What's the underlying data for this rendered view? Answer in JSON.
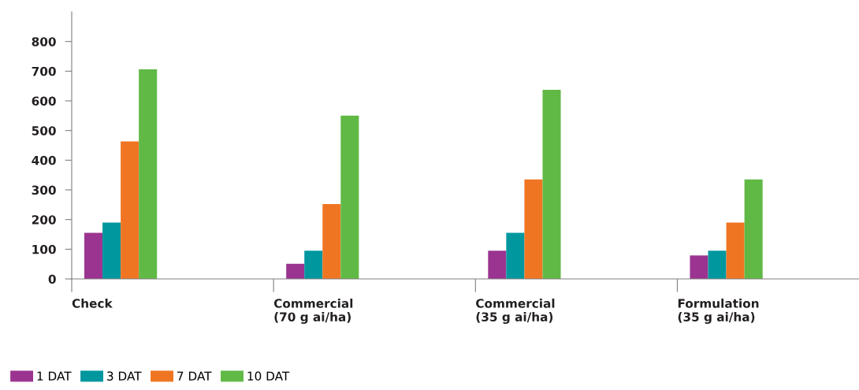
{
  "chart_data": {
    "type": "bar",
    "categories": [
      "Check",
      "Commercial\n(70 g ai/ha)",
      "Commercial\n(35 g ai/ha)",
      "Formulation\n(35 g ai/ha)"
    ],
    "series": [
      {
        "name": "1 DAT",
        "color": "#9b3490",
        "values": [
          155,
          51,
          95,
          79
        ]
      },
      {
        "name": "3 DAT",
        "color": "#00979f",
        "values": [
          190,
          95,
          155,
          95
        ]
      },
      {
        "name": "7 DAT",
        "color": "#f07522",
        "values": [
          463,
          252,
          335,
          190
        ]
      },
      {
        "name": "10 DAT",
        "color": "#60b945",
        "values": [
          706,
          550,
          637,
          335
        ]
      }
    ],
    "ylim": [
      0,
      900
    ],
    "yticks": [
      0,
      100,
      200,
      300,
      400,
      500,
      600,
      700,
      800
    ],
    "grid": false,
    "legend": "bottom left"
  }
}
